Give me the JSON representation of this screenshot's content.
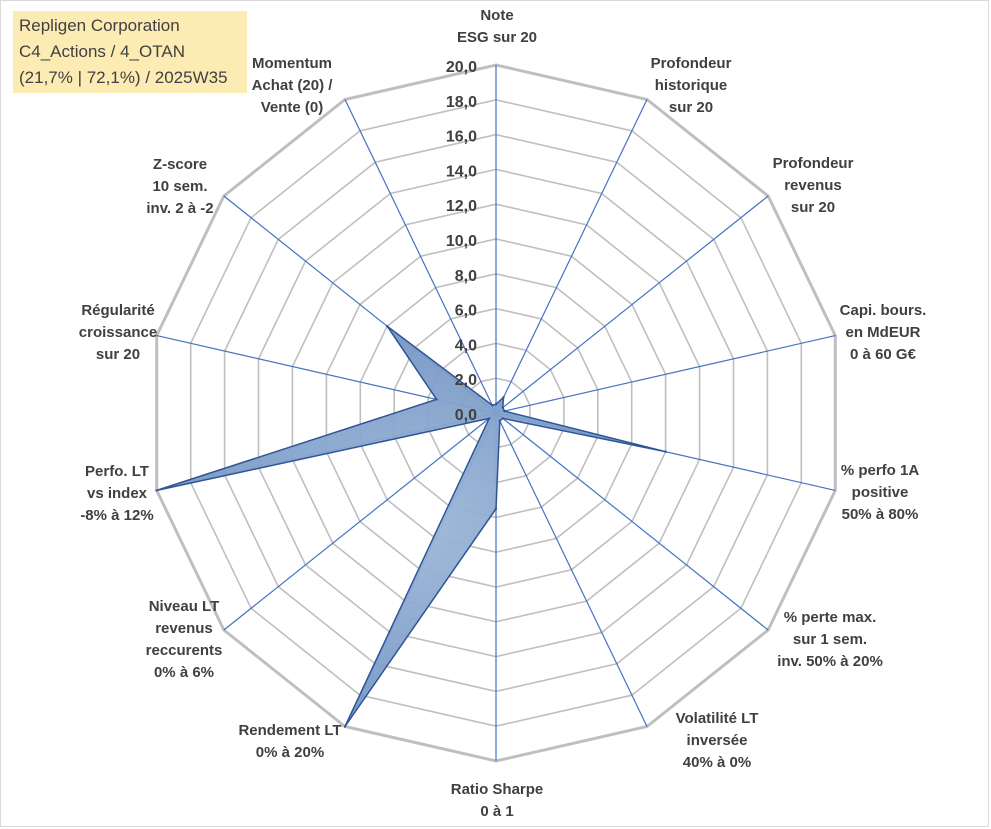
{
  "title_lines": [
    "Repligen Corporation",
    "C4_Actions / 4_OTAN",
    "(21,7% | 72,1%) / 2025W35"
  ],
  "colors": {
    "grid": "#bfbfbf",
    "spoke": "#4472c4",
    "fill": "#6b8fbf",
    "fill_stroke": "#2f5597",
    "text": "#404040",
    "title_bg": "#fdebb4"
  },
  "chart_data": {
    "type": "radar",
    "rmin": 0,
    "rmax": 20,
    "tick_step": 2,
    "tick_labels": [
      "0,0",
      "2,0",
      "4,0",
      "6,0",
      "8,0",
      "10,0",
      "12,0",
      "14,0",
      "16,0",
      "18,0",
      "20,0"
    ],
    "grid": true,
    "legend": "none",
    "axes": [
      {
        "label": [
          "Note",
          "ESG sur 20"
        ],
        "value": 0.5
      },
      {
        "label": [
          "Profondeur",
          "historique",
          "sur 20"
        ],
        "value": 1.0
      },
      {
        "label": [
          "Profondeur",
          "revenus",
          "sur 20"
        ],
        "value": 0.5
      },
      {
        "label": [
          "Capi. bours.",
          "en MdEUR",
          "0 à 60 G€"
        ],
        "value": 0.5
      },
      {
        "label": [
          "% perfo 1A",
          "positive",
          "50% à 80%"
        ],
        "value": 10.0
      },
      {
        "label": [
          "% perte max.",
          "sur 1 sem.",
          "inv. 50% à 20%"
        ],
        "value": 0.5
      },
      {
        "label": [
          "Volatilité LT",
          "inversée",
          "40% à 0%"
        ],
        "value": 0.5
      },
      {
        "label": [
          "Ratio Sharpe",
          "0 à 1"
        ],
        "value": 5.5
      },
      {
        "label": [
          "Rendement LT",
          "0% à 20%"
        ],
        "value": 20.0
      },
      {
        "label": [
          "Niveau LT",
          "revenus",
          "reccurents",
          "0% à 6%"
        ],
        "value": 0.5
      },
      {
        "label": [
          "Perfo. LT",
          "vs index",
          "-8% à 12%"
        ],
        "value": 20.0
      },
      {
        "label": [
          "Régularité",
          "croissance",
          "sur 20"
        ],
        "value": 3.5
      },
      {
        "label": [
          "Z-score",
          "10 sem.",
          "inv. 2 à -2"
        ],
        "value": 8.0
      },
      {
        "label": [
          "Momentum",
          "Achat (20) /",
          "Vente (0)"
        ],
        "value": 0.5
      }
    ]
  }
}
